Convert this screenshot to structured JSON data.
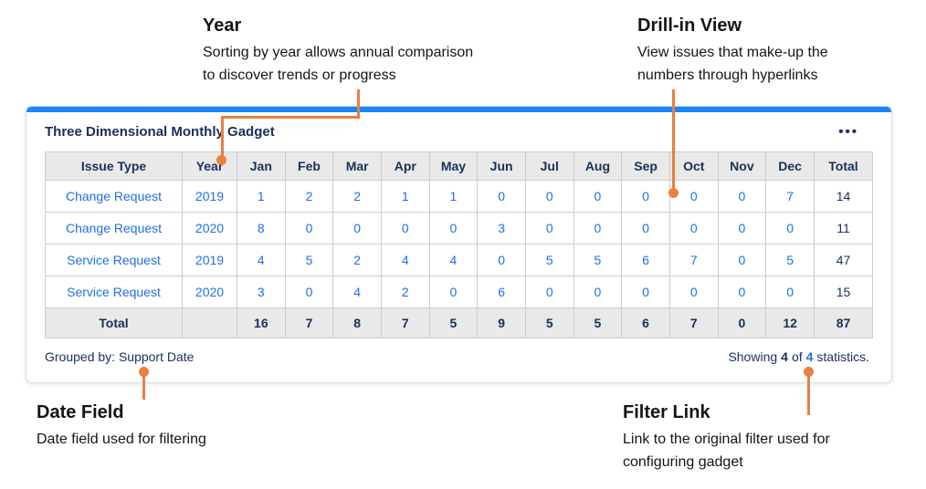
{
  "annotations": {
    "year": {
      "title": "Year",
      "line1": "Sorting by year allows annual comparison",
      "line2": "to discover trends or progress"
    },
    "drill_in": {
      "title": "Drill-in View",
      "line1": "View issues that make-up the",
      "line2": "numbers through hyperlinks"
    },
    "date_field": {
      "title": "Date Field",
      "line1": "Date field used for filtering",
      "line2": ""
    },
    "filter_link": {
      "title": "Filter Link",
      "line1": "Link to the original filter used for",
      "line2": "configuring gadget"
    }
  },
  "gadget": {
    "title": "Three Dimensional Monthly Gadget",
    "menu": "•••",
    "table": {
      "headers": [
        "Issue Type",
        "Year",
        "Jan",
        "Feb",
        "Mar",
        "Apr",
        "May",
        "Jun",
        "Jul",
        "Aug",
        "Sep",
        "Oct",
        "Nov",
        "Dec",
        "Total"
      ],
      "rows": [
        {
          "issue_type": "Change Request",
          "year": "2019",
          "values": [
            "1",
            "2",
            "2",
            "1",
            "1",
            "0",
            "0",
            "0",
            "0",
            "0",
            "0",
            "7"
          ],
          "total": "14"
        },
        {
          "issue_type": "Change Request",
          "year": "2020",
          "values": [
            "8",
            "0",
            "0",
            "0",
            "0",
            "3",
            "0",
            "0",
            "0",
            "0",
            "0",
            "0"
          ],
          "total": "11"
        },
        {
          "issue_type": "Service Request",
          "year": "2019",
          "values": [
            "4",
            "5",
            "2",
            "4",
            "4",
            "0",
            "5",
            "5",
            "6",
            "7",
            "0",
            "5"
          ],
          "total": "47"
        },
        {
          "issue_type": "Service Request",
          "year": "2020",
          "values": [
            "3",
            "0",
            "4",
            "2",
            "0",
            "6",
            "0",
            "0",
            "0",
            "0",
            "0",
            "0"
          ],
          "total": "15"
        }
      ],
      "total_row": {
        "label": "Total",
        "values": [
          "16",
          "7",
          "8",
          "7",
          "5",
          "9",
          "5",
          "5",
          "6",
          "7",
          "0",
          "12"
        ],
        "total": "87"
      }
    },
    "footer": {
      "grouped_by_label": "Grouped by:",
      "grouped_by_value": "Support Date",
      "showing_prefix": "Showing",
      "showing_count": "4",
      "showing_of": "of",
      "showing_total": "4",
      "showing_suffix": "statistics."
    }
  },
  "colors": {
    "accent_bar": "#1787f9",
    "link_blue": "#2070e0",
    "navy_text": "#17305c",
    "callout_orange": "#e8803f",
    "header_bg": "#e9e9e9"
  }
}
